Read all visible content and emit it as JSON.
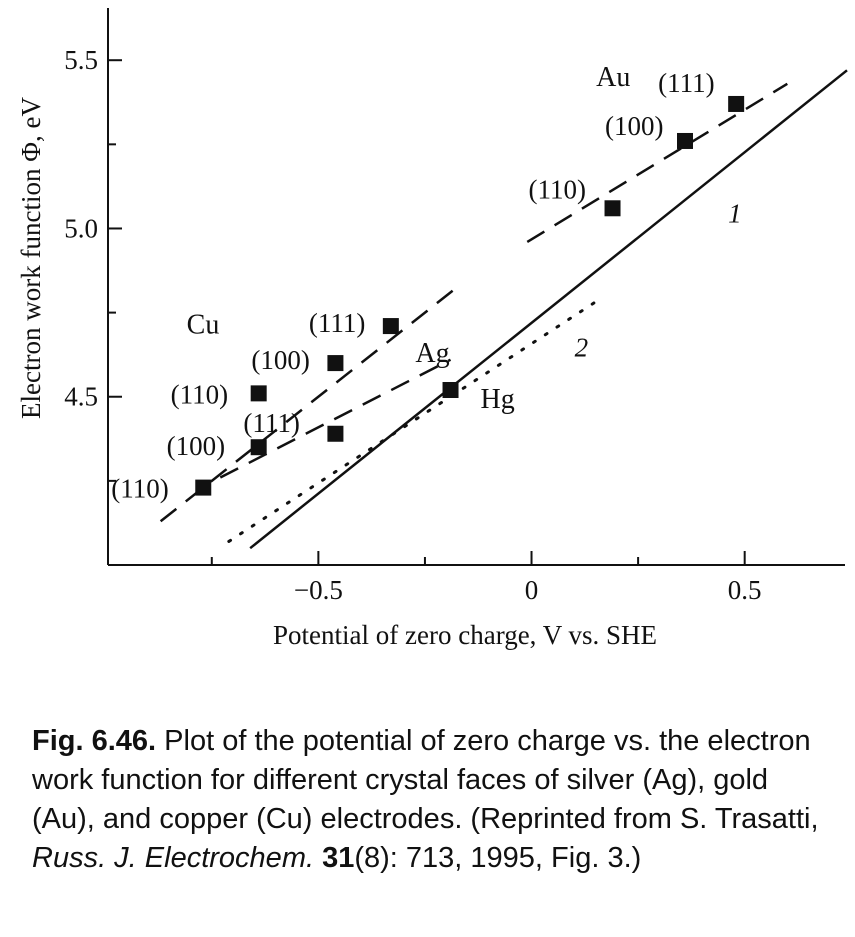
{
  "chart_data": {
    "type": "scatter",
    "xlabel": "Potential of zero charge, V vs. SHE",
    "ylabel": "Electron work function Φ, eV",
    "xlim": [
      -0.97,
      0.74
    ],
    "ylim": [
      4.0,
      5.67
    ],
    "x_ticks": [
      -0.5,
      0,
      0.5
    ],
    "x_tick_labels": [
      "−0.5",
      "0",
      "0.5"
    ],
    "y_ticks": [
      4.5,
      5.0,
      5.5
    ],
    "y_tick_labels": [
      "4.5",
      "5.0",
      "5.5"
    ],
    "y_minor_ticks": [
      4.25,
      4.75,
      5.25
    ],
    "x_minor_ticks": [
      -0.75,
      -0.25,
      0.25
    ],
    "grid": false,
    "series": [
      {
        "name": "Au",
        "points": [
          {
            "label": "(110)",
            "x": 0.19,
            "y": 5.06
          },
          {
            "label": "(100)",
            "x": 0.36,
            "y": 5.26
          },
          {
            "label": "(111)",
            "x": 0.48,
            "y": 5.37
          }
        ]
      },
      {
        "name": "Cu",
        "points": [
          {
            "label": "(110)",
            "x": -0.64,
            "y": 4.51
          },
          {
            "label": "(100)",
            "x": -0.46,
            "y": 4.6
          },
          {
            "label": "(111)",
            "x": -0.33,
            "y": 4.71
          }
        ]
      },
      {
        "name": "Ag",
        "points": [
          {
            "label": "(110)",
            "x": -0.77,
            "y": 4.23
          },
          {
            "label": "(100)",
            "x": -0.64,
            "y": 4.35
          },
          {
            "label": "(111)",
            "x": -0.46,
            "y": 4.39
          }
        ]
      },
      {
        "name": "Hg",
        "points": [
          {
            "x": -0.19,
            "y": 4.52
          }
        ]
      }
    ],
    "lines": [
      {
        "label": "1",
        "style": "solid",
        "x": [
          -0.66,
          0.74
        ],
        "y": [
          4.05,
          5.47
        ]
      },
      {
        "label": "2",
        "style": "dotted",
        "x": [
          -0.71,
          0.16
        ],
        "y": [
          4.07,
          4.79
        ]
      },
      {
        "style": "dashed",
        "x": [
          -0.01,
          0.6
        ],
        "y": [
          4.96,
          5.43
        ]
      },
      {
        "style": "dashed",
        "x": [
          -0.87,
          -0.17
        ],
        "y": [
          4.13,
          4.83
        ]
      },
      {
        "style": "dashed",
        "x": [
          -0.73,
          -0.19
        ],
        "y": [
          4.26,
          4.61
        ]
      }
    ]
  },
  "caption": {
    "lead": "Fig. 6.46.",
    "body": " Plot of the potential of zero charge vs. the electron work function for different crystal faces of silver (Ag), gold (Au), and copper (Cu) electrodes. (Reprinted from S. Trasatti, ",
    "journal": "Russ. J. Electrochem.",
    "volume": " 31",
    "rest": "(8): 713, 1995, Fig. 3.)"
  }
}
